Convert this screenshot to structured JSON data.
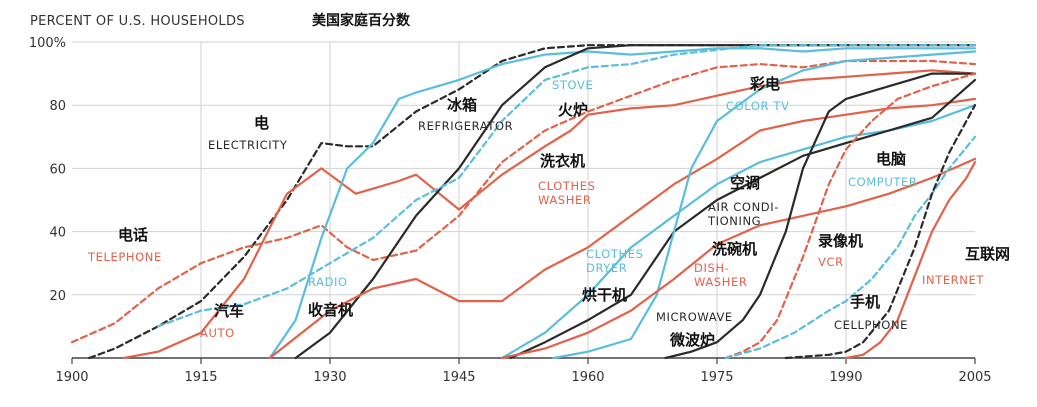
{
  "header": {
    "title_en": "PERCENT OF U.S. HOUSEHOLDS",
    "title_cn": "美国家庭百分数"
  },
  "colors": {
    "black": "#2a2a2a",
    "orange": "#e2614a",
    "blue": "#58bedc",
    "grid": "#d2d2d2"
  },
  "chart_data": {
    "type": "line",
    "title": "PERCENT OF U.S. HOUSEHOLDS",
    "xlim": [
      1900,
      2005
    ],
    "ylim": [
      0,
      100
    ],
    "x_ticks": [
      1900,
      1915,
      1930,
      1945,
      1960,
      1975,
      1990,
      2005
    ],
    "y_ticks": [
      20,
      40,
      60,
      80,
      100
    ],
    "y_tick_labels": [
      "20",
      "40",
      "60",
      "80",
      "100%"
    ],
    "grid": true,
    "series": [
      {
        "name": "ELECTRICITY",
        "name_cn": "电",
        "color": "black",
        "dash": true,
        "points": [
          [
            1902,
            0
          ],
          [
            1905,
            3
          ],
          [
            1910,
            10
          ],
          [
            1915,
            18
          ],
          [
            1920,
            32
          ],
          [
            1925,
            50
          ],
          [
            1929,
            68
          ],
          [
            1932,
            67
          ],
          [
            1935,
            67
          ],
          [
            1940,
            78
          ],
          [
            1945,
            85
          ],
          [
            1950,
            94
          ],
          [
            1955,
            98
          ],
          [
            1960,
            99
          ],
          [
            1970,
            99
          ],
          [
            2005,
            99
          ]
        ]
      },
      {
        "name": "TELEPHONE",
        "name_cn": "电话",
        "color": "orange",
        "dash": true,
        "points": [
          [
            1900,
            5
          ],
          [
            1905,
            11
          ],
          [
            1910,
            22
          ],
          [
            1915,
            30
          ],
          [
            1920,
            35
          ],
          [
            1925,
            38
          ],
          [
            1929,
            42
          ],
          [
            1932,
            35
          ],
          [
            1935,
            31
          ],
          [
            1940,
            34
          ],
          [
            1945,
            45
          ],
          [
            1950,
            62
          ],
          [
            1955,
            72
          ],
          [
            1960,
            78
          ],
          [
            1965,
            83
          ],
          [
            1970,
            88
          ],
          [
            1975,
            92
          ],
          [
            1980,
            93
          ],
          [
            1985,
            92
          ],
          [
            1990,
            94
          ],
          [
            1995,
            94
          ],
          [
            2000,
            94
          ],
          [
            2005,
            93
          ]
        ]
      },
      {
        "name": "AUTO",
        "name_cn": "汽车",
        "color": "orange",
        "dash": false,
        "points": [
          [
            1906,
            0
          ],
          [
            1910,
            2
          ],
          [
            1915,
            8
          ],
          [
            1920,
            25
          ],
          [
            1925,
            52
          ],
          [
            1929,
            60
          ],
          [
            1933,
            52
          ],
          [
            1938,
            56
          ],
          [
            1940,
            58
          ],
          [
            1945,
            47
          ],
          [
            1950,
            58
          ],
          [
            1955,
            67
          ],
          [
            1958,
            72
          ],
          [
            1960,
            77
          ],
          [
            1965,
            79
          ],
          [
            1970,
            80
          ],
          [
            1975,
            83
          ],
          [
            1980,
            86
          ],
          [
            1985,
            88
          ],
          [
            1990,
            89
          ],
          [
            1995,
            90
          ],
          [
            2000,
            91
          ],
          [
            2005,
            90
          ]
        ]
      },
      {
        "name": "RADIO",
        "name_cn": "收音机",
        "color": "blue",
        "dash": false,
        "points": [
          [
            1923,
            0
          ],
          [
            1926,
            12
          ],
          [
            1929,
            38
          ],
          [
            1932,
            60
          ],
          [
            1935,
            68
          ],
          [
            1938,
            82
          ],
          [
            1940,
            84
          ],
          [
            1945,
            88
          ],
          [
            1950,
            93
          ],
          [
            1955,
            96
          ],
          [
            1960,
            97
          ],
          [
            1965,
            96
          ],
          [
            1970,
            97
          ],
          [
            1975,
            98
          ],
          [
            1980,
            98
          ],
          [
            1985,
            97
          ],
          [
            1990,
            98
          ],
          [
            1995,
            98
          ],
          [
            2000,
            98
          ],
          [
            2005,
            98
          ]
        ]
      },
      {
        "name": "REFRIGERATOR",
        "name_cn": "冰箱",
        "color": "black",
        "dash": false,
        "points": [
          [
            1926,
            0
          ],
          [
            1930,
            8
          ],
          [
            1935,
            25
          ],
          [
            1940,
            45
          ],
          [
            1945,
            60
          ],
          [
            1950,
            80
          ],
          [
            1955,
            92
          ],
          [
            1960,
            98
          ],
          [
            1965,
            99
          ],
          [
            2005,
            99
          ]
        ]
      },
      {
        "name": "STOVE",
        "name_cn": "火炉",
        "color": "blue",
        "dash": true,
        "points": [
          [
            1910,
            10
          ],
          [
            1915,
            15
          ],
          [
            1920,
            17
          ],
          [
            1925,
            22
          ],
          [
            1930,
            30
          ],
          [
            1935,
            38
          ],
          [
            1940,
            50
          ],
          [
            1945,
            57
          ],
          [
            1950,
            75
          ],
          [
            1955,
            88
          ],
          [
            1960,
            92
          ],
          [
            1965,
            93
          ],
          [
            1970,
            96
          ],
          [
            1980,
            99
          ],
          [
            2005,
            99
          ]
        ]
      },
      {
        "name": "CLOTHES WASHER",
        "name_cn": "洗衣机",
        "color": "orange",
        "dash": false,
        "points": [
          [
            1923,
            0
          ],
          [
            1930,
            15
          ],
          [
            1935,
            22
          ],
          [
            1940,
            25
          ],
          [
            1945,
            18
          ],
          [
            1950,
            18
          ],
          [
            1955,
            28
          ],
          [
            1960,
            35
          ],
          [
            1965,
            45
          ],
          [
            1970,
            55
          ],
          [
            1975,
            63
          ],
          [
            1980,
            72
          ],
          [
            1985,
            75
          ],
          [
            1990,
            77
          ],
          [
            1995,
            79
          ],
          [
            2000,
            80
          ],
          [
            2005,
            82
          ]
        ]
      },
      {
        "name": "CLOTHES DRYER",
        "name_cn": "烘干机",
        "color": "blue",
        "dash": false,
        "points": [
          [
            1950,
            0
          ],
          [
            1955,
            8
          ],
          [
            1960,
            20
          ],
          [
            1965,
            35
          ],
          [
            1970,
            45
          ],
          [
            1975,
            55
          ],
          [
            1980,
            62
          ],
          [
            1985,
            66
          ],
          [
            1990,
            70
          ],
          [
            1995,
            72
          ],
          [
            2000,
            75
          ],
          [
            2005,
            80
          ]
        ]
      },
      {
        "name": "AIR CONDITIONING",
        "name_cn": "空调",
        "color": "black",
        "dash": false,
        "points": [
          [
            1951,
            0
          ],
          [
            1955,
            5
          ],
          [
            1960,
            12
          ],
          [
            1965,
            20
          ],
          [
            1970,
            40
          ],
          [
            1975,
            50
          ],
          [
            1980,
            57
          ],
          [
            1985,
            64
          ],
          [
            1990,
            68
          ],
          [
            1995,
            72
          ],
          [
            2000,
            76
          ],
          [
            2005,
            88
          ]
        ]
      },
      {
        "name": "COLOR TV",
        "name_cn": "彩电",
        "color": "blue",
        "dash": false,
        "points": [
          [
            1956,
            0
          ],
          [
            1960,
            2
          ],
          [
            1965,
            6
          ],
          [
            1968,
            20
          ],
          [
            1970,
            40
          ],
          [
            1972,
            60
          ],
          [
            1975,
            75
          ],
          [
            1980,
            85
          ],
          [
            1985,
            91
          ],
          [
            1990,
            94
          ],
          [
            1995,
            95
          ],
          [
            2000,
            96
          ],
          [
            2005,
            97
          ]
        ]
      },
      {
        "name": "DISH-WASHER",
        "name_cn": "洗碗机",
        "color": "orange",
        "dash": false,
        "points": [
          [
            1950,
            0
          ],
          [
            1955,
            3
          ],
          [
            1960,
            8
          ],
          [
            1965,
            15
          ],
          [
            1970,
            25
          ],
          [
            1975,
            36
          ],
          [
            1980,
            42
          ],
          [
            1985,
            45
          ],
          [
            1990,
            48
          ],
          [
            1995,
            52
          ],
          [
            2000,
            57
          ],
          [
            2005,
            63
          ]
        ]
      },
      {
        "name": "MICROWAVE",
        "name_cn": "微波炉",
        "color": "black",
        "dash": false,
        "points": [
          [
            1969,
            0
          ],
          [
            1972,
            2
          ],
          [
            1975,
            5
          ],
          [
            1978,
            12
          ],
          [
            1980,
            20
          ],
          [
            1983,
            40
          ],
          [
            1985,
            60
          ],
          [
            1988,
            78
          ],
          [
            1990,
            82
          ],
          [
            1995,
            86
          ],
          [
            2000,
            90
          ],
          [
            2005,
            90
          ]
        ]
      },
      {
        "name": "VCR",
        "name_cn": "录像机",
        "color": "orange",
        "dash": true,
        "points": [
          [
            1976,
            0
          ],
          [
            1978,
            2
          ],
          [
            1980,
            5
          ],
          [
            1982,
            12
          ],
          [
            1985,
            32
          ],
          [
            1988,
            55
          ],
          [
            1990,
            66
          ],
          [
            1993,
            75
          ],
          [
            1996,
            82
          ],
          [
            2000,
            86
          ],
          [
            2005,
            90
          ]
        ]
      },
      {
        "name": "COMPUTER",
        "name_cn": "电脑",
        "color": "blue",
        "dash": true,
        "points": [
          [
            1976,
            0
          ],
          [
            1980,
            3
          ],
          [
            1984,
            8
          ],
          [
            1988,
            15
          ],
          [
            1990,
            18
          ],
          [
            1993,
            25
          ],
          [
            1996,
            35
          ],
          [
            1998,
            45
          ],
          [
            2000,
            52
          ],
          [
            2002,
            60
          ],
          [
            2005,
            70
          ]
        ]
      },
      {
        "name": "CELLPHONE",
        "name_cn": "手机",
        "color": "black",
        "dash": true,
        "points": [
          [
            1983,
            0
          ],
          [
            1988,
            1
          ],
          [
            1990,
            2
          ],
          [
            1992,
            5
          ],
          [
            1995,
            15
          ],
          [
            1998,
            35
          ],
          [
            2000,
            52
          ],
          [
            2002,
            65
          ],
          [
            2005,
            80
          ]
        ]
      },
      {
        "name": "INTERNET",
        "name_cn": "互联网",
        "color": "orange",
        "dash": false,
        "points": [
          [
            1990,
            0
          ],
          [
            1992,
            1
          ],
          [
            1994,
            5
          ],
          [
            1996,
            12
          ],
          [
            1998,
            26
          ],
          [
            2000,
            40
          ],
          [
            2002,
            50
          ],
          [
            2004,
            57
          ],
          [
            2005,
            62
          ]
        ]
      }
    ],
    "annotations": [
      {
        "en": "ELECTRICITY",
        "cn": "电"
      },
      {
        "en": "TELEPHONE",
        "cn": "电话"
      },
      {
        "en": "AUTO",
        "cn": "汽车"
      },
      {
        "en": "RADIO",
        "cn": "收音机"
      },
      {
        "en": "REFRIGERATOR",
        "cn": "冰箱"
      },
      {
        "en": "STOVE",
        "cn": "火炉"
      },
      {
        "en": "CLOTHES WASHER",
        "cn": "洗衣机"
      },
      {
        "en": "CLOTHES DRYER",
        "cn": "烘干机"
      },
      {
        "en": "AIR CONDI- TIONING",
        "cn": "空调"
      },
      {
        "en": "COLOR TV",
        "cn": "彩电"
      },
      {
        "en": "DISH- WASHER",
        "cn": "洗碗机"
      },
      {
        "en": "MICROWAVE",
        "cn": "微波炉"
      },
      {
        "en": "VCR",
        "cn": "录像机"
      },
      {
        "en": "COMPUTER",
        "cn": "电脑"
      },
      {
        "en": "CELLPHONE",
        "cn": "手机"
      },
      {
        "en": "INTERNET",
        "cn": "互联网"
      }
    ]
  }
}
